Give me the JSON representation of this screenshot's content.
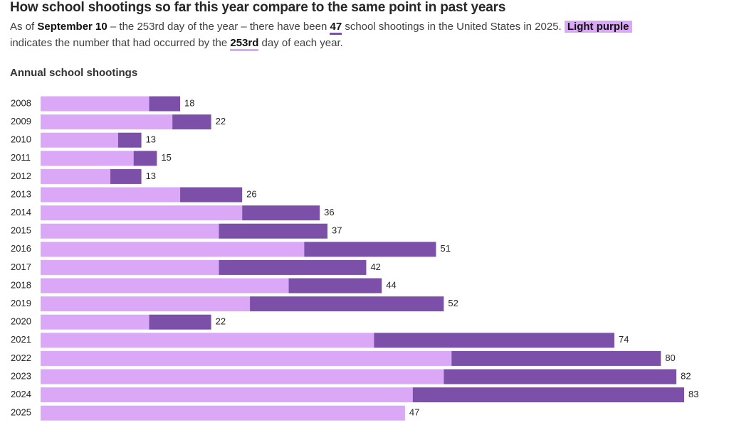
{
  "title": "How school shootings so far this year compare to the same point in past years",
  "subtitle": [
    "As of ",
    "September 10",
    " – the 253rd day of the year – there have been ",
    "47",
    " school shootings in the United States in 2025. ",
    "Light purple",
    " indicates the number that had occurred by the ",
    "253rd",
    " day of each year."
  ],
  "chart_data": {
    "type": "stacked-bar",
    "orientation": "horizontal",
    "title": "Annual school shootings",
    "categories": [
      "2008",
      "2009",
      "2010",
      "2011",
      "2012",
      "2013",
      "2014",
      "2015",
      "2016",
      "2017",
      "2018",
      "2019",
      "2020",
      "2021",
      "2022",
      "2023",
      "2024",
      "2025"
    ],
    "series": [
      {
        "color": "#dba8f7",
        "values": [
          14,
          17,
          10,
          12,
          9,
          18,
          26,
          23,
          34,
          23,
          32,
          27,
          14,
          43,
          53,
          52,
          48,
          47
        ]
      },
      {
        "color": "#7c4fa8",
        "values": [
          4,
          5,
          3,
          3,
          4,
          8,
          10,
          14,
          17,
          19,
          12,
          25,
          8,
          31,
          27,
          30,
          35,
          null
        ]
      }
    ],
    "totals": [
      18,
      22,
      13,
      15,
      13,
      26,
      36,
      37,
      51,
      42,
      44,
      52,
      22,
      74,
      80,
      82,
      83,
      47
    ]
  }
}
